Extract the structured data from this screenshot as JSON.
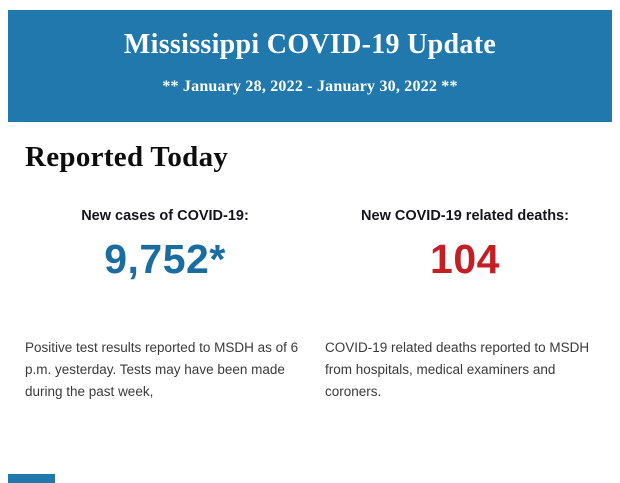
{
  "header": {
    "title": "Mississippi COVID-19 Update",
    "date_range": "** January 28, 2022 - January 30, 2022 **",
    "background_color": "#2078ad",
    "text_color": "#ffffff"
  },
  "section": {
    "heading": "Reported Today"
  },
  "stats": {
    "cases": {
      "label": "New cases of COVID-19:",
      "value": "9,752*",
      "value_color": "#1b6da1",
      "description": "Positive test results reported to MSDH as of 6 p.m. yesterday. Tests may have been made during the past week,"
    },
    "deaths": {
      "label": "New COVID-19 related deaths:",
      "value": "104",
      "value_color": "#c41f25",
      "description": "COVID-19 related deaths reported to MSDH from hospitals, medical examiners and coroners."
    }
  }
}
